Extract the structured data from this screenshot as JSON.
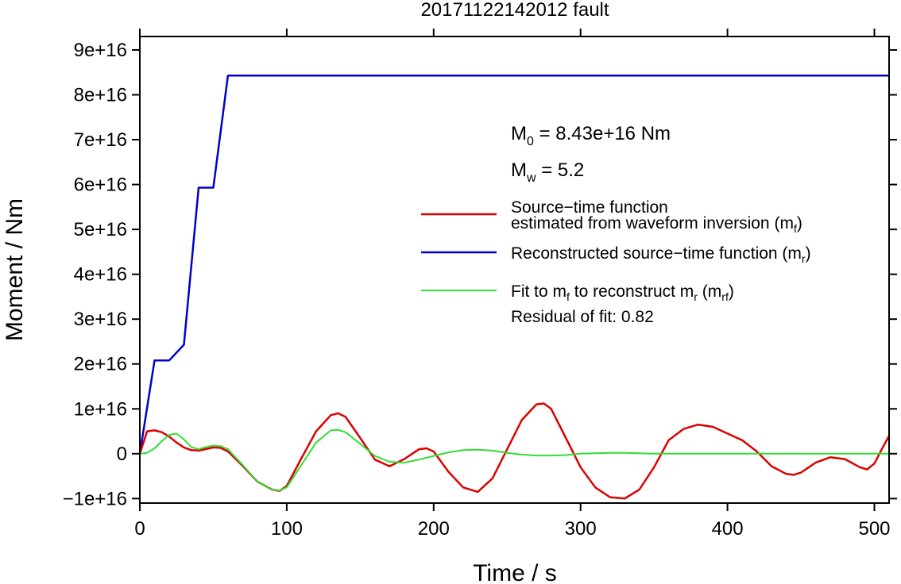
{
  "chart_data": {
    "type": "line",
    "title": "20171122142012 fault",
    "xlabel": "Time / s",
    "ylabel": "Moment / Nm",
    "xlim": [
      0,
      510
    ],
    "ylim": [
      -1.1e+16,
      9.3e+16
    ],
    "xticks": [
      0,
      100,
      200,
      300,
      400,
      500
    ],
    "xtick_labels": [
      "0",
      "100",
      "200",
      "300",
      "400",
      "500"
    ],
    "yticks": [
      -1e+16,
      0,
      1e+16,
      2e+16,
      3e+16,
      4e+16,
      5e+16,
      6e+16,
      7e+16,
      8e+16,
      9e+16
    ],
    "ytick_labels": [
      "−1e+16",
      "0",
      "1e+16",
      "2e+16",
      "3e+16",
      "4e+16",
      "5e+16",
      "6e+16",
      "7e+16",
      "8e+16",
      "9e+16"
    ],
    "grid": false,
    "legend_position": "right",
    "annotations": {
      "m0_label": "M",
      "m0_sub": "0",
      "m0_value": " = 8.43e+16 Nm",
      "mw_label": "M",
      "mw_sub": "w",
      "mw_value": " = 5.2",
      "residual": "Residual of fit: 0.82"
    },
    "legend": {
      "red_line1": "Source−time function",
      "red_line2": "estimated from waveform inversion (m",
      "red_line2_sub": "f",
      "red_line2_end": ")",
      "blue_text": "Reconstructed source−time function (m",
      "blue_sub": "r",
      "blue_end": ")",
      "green_text1": "Fit to m",
      "green_sub1": "f",
      "green_text2": " to reconstruct m",
      "green_sub2": "r",
      "green_text3": " (m",
      "green_sub3": "rf",
      "green_end": ")"
    },
    "series": [
      {
        "color": "#0000cc",
        "x": [
          0,
          10,
          20,
          30,
          40,
          50,
          60,
          510
        ],
        "y": [
          0,
          2.08e+16,
          2.08e+16,
          2.43e+16,
          5.93e+16,
          5.93e+16,
          8.43e+16,
          8.43e+16
        ]
      },
      {
        "color": "#dd0000",
        "x": [
          0,
          5,
          10,
          15,
          20,
          25,
          30,
          35,
          40,
          50,
          55,
          60,
          70,
          80,
          90,
          95,
          100,
          110,
          120,
          130,
          135,
          140,
          150,
          160,
          170,
          180,
          190,
          195,
          200,
          210,
          220,
          230,
          240,
          250,
          260,
          270,
          275,
          280,
          290,
          300,
          310,
          320,
          330,
          340,
          350,
          360,
          370,
          380,
          390,
          400,
          410,
          420,
          430,
          440,
          445,
          450,
          460,
          470,
          480,
          490,
          495,
          500,
          505,
          510
        ],
        "y": [
          0,
          5000000000000000.0,
          5200000000000000.0,
          4800000000000000.0,
          3800000000000000.0,
          2500000000000000.0,
          1400000000000000.0,
          800000000000000.0,
          700000000000000.0,
          1400000000000000.0,
          1300000000000000.0,
          500000000000000.0,
          -2700000000000000.0,
          -6200000000000000.0,
          -8000000000000000.0,
          -8300000000000000.0,
          -7200000000000000.0,
          -1000000000000000.0,
          5000000000000000.0,
          8600000000000000.0,
          9000000000000000.0,
          8200000000000000.0,
          3500000000000000.0,
          -1300000000000000.0,
          -2800000000000000.0,
          -1200000000000000.0,
          1000000000000000.0,
          1200000000000000.0,
          500000000000000.0,
          -4000000000000000.0,
          -7500000000000000.0,
          -8500000000000000.0,
          -5500000000000000.0,
          1000000000000000.0,
          7500000000000000.0,
          1.1e+16,
          1.12e+16,
          1e+16,
          3500000000000000.0,
          -3000000000000000.0,
          -7500000000000000.0,
          -9700000000000000.0,
          -1e+16,
          -8000000000000000.0,
          -3000000000000000.0,
          3000000000000000.0,
          5500000000000000.0,
          6500000000000000.0,
          6000000000000000.0,
          4500000000000000.0,
          3000000000000000.0,
          500000000000000.0,
          -2800000000000000.0,
          -4500000000000000.0,
          -4700000000000000.0,
          -4200000000000000.0,
          -2000000000000000.0,
          -800000000000000.0,
          -1200000000000000.0,
          -3000000000000000.0,
          -3500000000000000.0,
          -2200000000000000.0,
          1000000000000000.0,
          4000000000000000.0
        ]
      },
      {
        "color": "#33dd33",
        "x": [
          0,
          5,
          10,
          15,
          20,
          25,
          30,
          35,
          40,
          45,
          50,
          55,
          60,
          70,
          80,
          90,
          95,
          100,
          110,
          120,
          130,
          135,
          140,
          150,
          160,
          170,
          180,
          190,
          200,
          210,
          220,
          230,
          240,
          250,
          260,
          270,
          280,
          290,
          300,
          310,
          320,
          330,
          340,
          350,
          360,
          370,
          380,
          390,
          400,
          420,
          450,
          480,
          510
        ],
        "y": [
          0,
          200000000000000.0,
          1200000000000000.0,
          2800000000000000.0,
          4200000000000000.0,
          4500000000000000.0,
          3200000000000000.0,
          1500000000000000.0,
          1000000000000000.0,
          1500000000000000.0,
          1800000000000000.0,
          1700000000000000.0,
          1000000000000000.0,
          -2500000000000000.0,
          -6200000000000000.0,
          -8000000000000000.0,
          -8200000000000000.0,
          -7500000000000000.0,
          -2500000000000000.0,
          2500000000000000.0,
          5200000000000000.0,
          5300000000000000.0,
          4800000000000000.0,
          2200000000000000.0,
          -500000000000000.0,
          -1800000000000000.0,
          -2000000000000000.0,
          -1300000000000000.0,
          -500000000000000.0,
          300000000000000.0,
          800000000000000.0,
          900000000000000.0,
          700000000000000.0,
          200000000000000.0,
          -200000000000000.0,
          -400000000000000.0,
          -400000000000000.0,
          -300000000000000.0,
          0.0,
          100000000000000.0,
          200000000000000.0,
          200000000000000.0,
          100000000000000.0,
          0.0,
          0.0,
          0.0,
          0.0,
          0.0,
          0.0,
          0.0,
          0.0,
          0.0,
          0.0
        ]
      }
    ]
  }
}
